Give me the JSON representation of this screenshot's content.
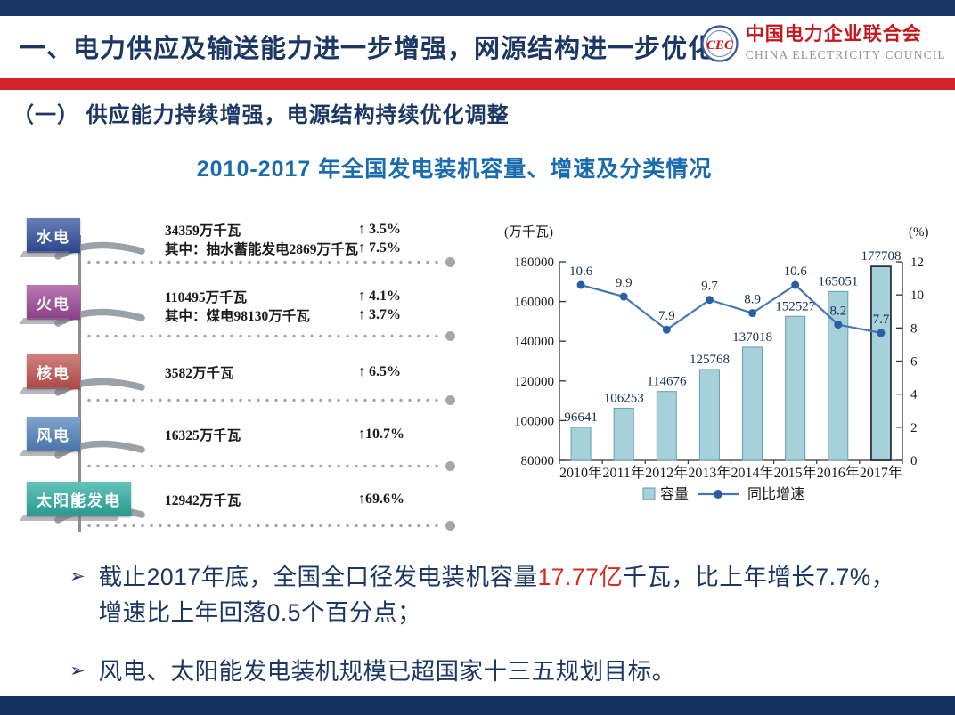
{
  "colors": {
    "navy": "#1b3764",
    "red_accent": "#d2232a",
    "chart_title_blue": "#1a6cb0",
    "bar_fill": "#a6d1da",
    "bar_stroke": "#63a0b0",
    "bar_last_stroke": "#1c2b39",
    "line": "#4677b2",
    "marker": "#2b5fa5",
    "highlight_red": "#d42a22",
    "logo_red": "#c8161d"
  },
  "header": {
    "title": "一、电力供应及输送能力进一步增强，网源结构进一步优化",
    "logo": {
      "emblem": "CEC",
      "name_cn": "中国电力企业联合会",
      "name_en": "CHINA ELECTRICITY COUNCIL"
    }
  },
  "section": {
    "subtitle": "（一）  供应能力持续增强，电源结构持续优化调整",
    "chart_title": "2010-2017 年全国发电装机容量、增速及分类情况"
  },
  "breakdown": {
    "items": [
      {
        "label": "水电",
        "color": "#2e4d9b",
        "lines": [
          {
            "value": "34359万千瓦",
            "growth": "↑ 3.5%"
          },
          {
            "value": "其中：抽水蓄能发电2869万千瓦",
            "growth": "↑ 7.5%"
          }
        ]
      },
      {
        "label": "火电",
        "color": "#9b4596",
        "lines": [
          {
            "value": "110495万千瓦",
            "growth": "↑ 4.1%"
          },
          {
            "value": "其中：煤电98130万千瓦",
            "growth": "↑ 3.7%"
          }
        ]
      },
      {
        "label": "核电",
        "color": "#c0504d",
        "lines": [
          {
            "value": "3582万千瓦",
            "growth": "↑ 6.5%"
          }
        ]
      },
      {
        "label": "风电",
        "color": "#4f81bd",
        "lines": [
          {
            "value": "16325万千瓦",
            "growth": "↑10.7%"
          }
        ]
      },
      {
        "label": "太阳能发电",
        "color": "#2aab9f",
        "lines": [
          {
            "value": "12942万千瓦",
            "growth": "↑69.6%"
          }
        ]
      }
    ]
  },
  "chart_data": {
    "type": "bar+line",
    "title": "2010-2017 年全国发电装机容量、增速及分类情况",
    "categories": [
      "2010年",
      "2011年",
      "2012年",
      "2013年",
      "2014年",
      "2015年",
      "2016年",
      "2017年"
    ],
    "series": [
      {
        "name": "容量",
        "type": "bar",
        "axis": "left",
        "values": [
          96641,
          106253,
          114676,
          125768,
          137018,
          152527,
          165051,
          177708
        ]
      },
      {
        "name": "同比增速",
        "type": "line",
        "axis": "right",
        "values": [
          10.6,
          9.9,
          7.9,
          9.7,
          8.9,
          10.6,
          8.2,
          7.7
        ]
      }
    ],
    "left_axis": {
      "label": "(万千瓦)",
      "min": 80000,
      "max": 180000,
      "step": 20000
    },
    "right_axis": {
      "label": "(%)",
      "min": 0,
      "max": 12,
      "step": 2
    },
    "grid": false,
    "legend_position": "bottom"
  },
  "bullet_marker": "➢",
  "bullets": [
    {
      "pre": "截止2017年底，全国全口径发电装机容量",
      "highlight": "17.77亿",
      "post": "千瓦，比上年增长7.7%，",
      "line2": "增速比上年回落0.5个百分点；"
    },
    {
      "pre": "",
      "highlight": "",
      "post": "风电、太阳能发电装机规模已超国家十三五规划目标。",
      "line2": ""
    }
  ]
}
